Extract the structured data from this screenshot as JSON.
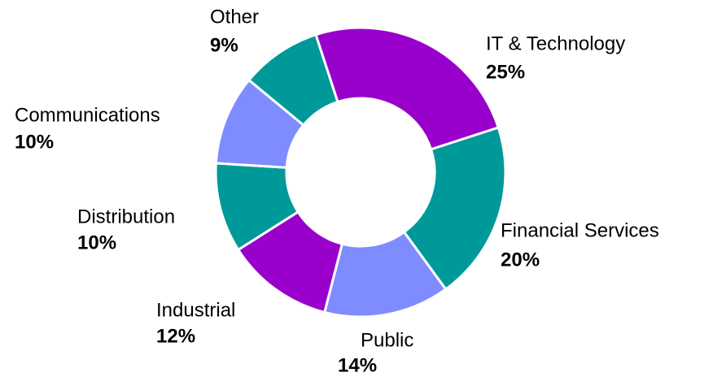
{
  "chart_data": {
    "type": "donut",
    "categories": [
      "IT & Technology",
      "Financial Services",
      "Public",
      "Industrial",
      "Distribution",
      "Communications",
      "Other"
    ],
    "values": [
      25,
      20,
      14,
      12,
      10,
      10,
      9
    ],
    "value_labels": [
      "25%",
      "20%",
      "14%",
      "12%",
      "10%",
      "10%",
      "9%"
    ],
    "colors": [
      "#9900cc",
      "#009999",
      "#7f8cff",
      "#9900cc",
      "#009999",
      "#7f8cff",
      "#009999"
    ]
  }
}
